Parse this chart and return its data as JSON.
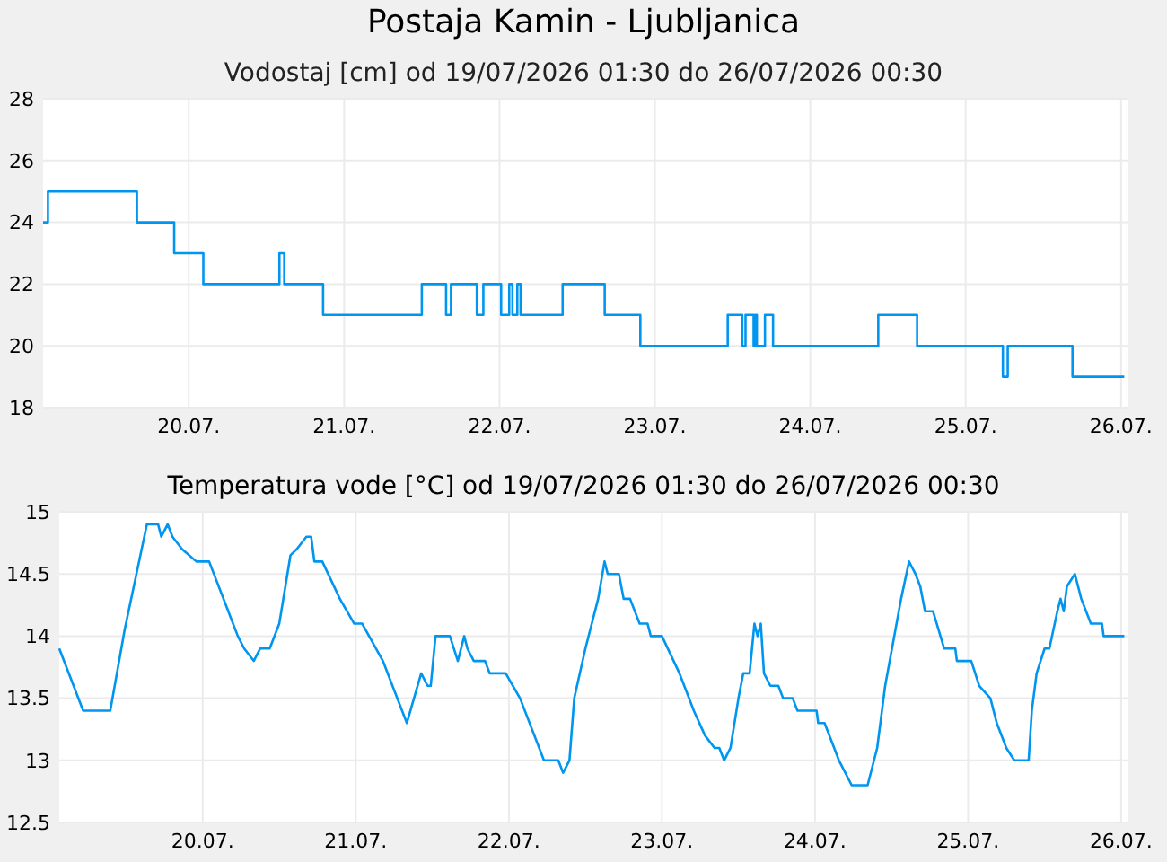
{
  "chart_data": [
    {
      "type": "step",
      "title": "Postaja Kamin - Ljubljanica",
      "subtitle": "Vodostaj [cm] od 19/07/2026 01:30 do 26/07/2026 00:30",
      "xlim": [
        "2026-07-19T01:30",
        "2026-07-26T01:00"
      ],
      "xticks": [
        {
          "value": "2026-07-20",
          "label": "20.07."
        },
        {
          "value": "2026-07-21",
          "label": "21.07."
        },
        {
          "value": "2026-07-22",
          "label": "22.07."
        },
        {
          "value": "2026-07-23",
          "label": "23.07."
        },
        {
          "value": "2026-07-24",
          "label": "24.07."
        },
        {
          "value": "2026-07-25",
          "label": "25.07."
        },
        {
          "value": "2026-07-26",
          "label": "26.07."
        }
      ],
      "ylim": [
        18,
        28
      ],
      "yticks": [
        18,
        20,
        22,
        24,
        26,
        28
      ],
      "grid": true,
      "series": [
        {
          "color": "#0096f0",
          "x": [
            "2026-07-19T01:30",
            "2026-07-19T02:15",
            "2026-07-19T16:00",
            "2026-07-19T21:45",
            "2026-07-20T02:15",
            "2026-07-20T14:00",
            "2026-07-20T14:45",
            "2026-07-20T20:45",
            "2026-07-21T12:00",
            "2026-07-21T15:45",
            "2026-07-21T16:30",
            "2026-07-21T20:30",
            "2026-07-21T21:30",
            "2026-07-22T00:15",
            "2026-07-22T01:30",
            "2026-07-22T02:00",
            "2026-07-22T02:45",
            "2026-07-22T03:15",
            "2026-07-22T09:45",
            "2026-07-22T16:15",
            "2026-07-22T21:45",
            "2026-07-23T11:15",
            "2026-07-23T13:30",
            "2026-07-23T14:00",
            "2026-07-23T15:15",
            "2026-07-23T15:30",
            "2026-07-23T15:45",
            "2026-07-23T17:00",
            "2026-07-23T18:15",
            "2026-07-24T10:30",
            "2026-07-24T16:30",
            "2026-07-25T05:45",
            "2026-07-25T06:30",
            "2026-07-25T16:30",
            "2026-07-26T00:30"
          ],
          "values": [
            24,
            25,
            24,
            23,
            22,
            23,
            22,
            21,
            22,
            21,
            22,
            21,
            22,
            21,
            22,
            21,
            22,
            21,
            22,
            21,
            20,
            21,
            20,
            21,
            20,
            21,
            20,
            21,
            20,
            21,
            20,
            19,
            20,
            19,
            19
          ]
        }
      ]
    },
    {
      "type": "line",
      "title": "Temperatura vode [°C] od 19/07/2026 01:30 do 26/07/2026 00:30",
      "xlim": [
        "2026-07-19T01:30",
        "2026-07-26T01:00"
      ],
      "xticks": [
        {
          "value": "2026-07-20",
          "label": "20.07."
        },
        {
          "value": "2026-07-21",
          "label": "21.07."
        },
        {
          "value": "2026-07-22",
          "label": "22.07."
        },
        {
          "value": "2026-07-23",
          "label": "23.07."
        },
        {
          "value": "2026-07-24",
          "label": "24.07."
        },
        {
          "value": "2026-07-25",
          "label": "25.07."
        },
        {
          "value": "2026-07-26",
          "label": "26.07."
        }
      ],
      "ylim": [
        12.5,
        15
      ],
      "yticks": [
        12.5,
        13,
        13.5,
        14,
        14.5,
        15
      ],
      "grid": true,
      "series": [
        {
          "color": "#0096f0",
          "x": [
            "2026-07-19T01:30",
            "2026-07-19T05:15",
            "2026-07-19T09:30",
            "2026-07-19T11:45",
            "2026-07-19T15:15",
            "2026-07-19T17:00",
            "2026-07-19T17:30",
            "2026-07-19T18:30",
            "2026-07-19T19:15",
            "2026-07-19T20:45",
            "2026-07-19T23:00",
            "2026-07-20T01:00",
            "2026-07-20T05:30",
            "2026-07-20T06:30",
            "2026-07-20T08:00",
            "2026-07-20T09:00",
            "2026-07-20T10:30",
            "2026-07-20T12:00",
            "2026-07-20T13:45",
            "2026-07-20T14:45",
            "2026-07-20T16:15",
            "2026-07-20T17:00",
            "2026-07-20T17:30",
            "2026-07-20T18:45",
            "2026-07-20T21:30",
            "2026-07-20T23:45",
            "2026-07-21T01:00",
            "2026-07-21T04:15",
            "2026-07-21T08:00",
            "2026-07-21T10:15",
            "2026-07-21T11:15",
            "2026-07-21T11:45",
            "2026-07-21T12:30",
            "2026-07-21T14:45",
            "2026-07-21T16:00",
            "2026-07-21T17:00",
            "2026-07-21T17:30",
            "2026-07-21T18:30",
            "2026-07-21T20:15",
            "2026-07-21T21:00",
            "2026-07-21T23:30",
            "2026-07-22T01:45",
            "2026-07-22T05:30",
            "2026-07-22T07:45",
            "2026-07-22T08:30",
            "2026-07-22T09:30",
            "2026-07-22T10:15",
            "2026-07-22T12:00",
            "2026-07-22T14:00",
            "2026-07-22T15:00",
            "2026-07-22T15:30",
            "2026-07-22T17:15",
            "2026-07-22T18:00",
            "2026-07-22T19:00",
            "2026-07-22T20:30",
            "2026-07-22T21:45",
            "2026-07-22T22:15",
            "2026-07-23T00:00",
            "2026-07-23T02:45",
            "2026-07-23T05:00",
            "2026-07-23T06:45",
            "2026-07-23T08:15",
            "2026-07-23T09:00",
            "2026-07-23T09:45",
            "2026-07-23T10:45",
            "2026-07-23T12:00",
            "2026-07-23T12:45",
            "2026-07-23T13:45",
            "2026-07-23T14:30",
            "2026-07-23T15:00",
            "2026-07-23T15:30",
            "2026-07-23T16:00",
            "2026-07-23T17:00",
            "2026-07-23T18:15",
            "2026-07-23T19:00",
            "2026-07-23T20:30",
            "2026-07-23T21:15",
            "2026-07-24T00:15",
            "2026-07-24T00:30",
            "2026-07-24T01:30",
            "2026-07-24T03:45",
            "2026-07-24T05:45",
            "2026-07-24T08:15",
            "2026-07-24T09:45",
            "2026-07-24T11:00",
            "2026-07-24T13:30",
            "2026-07-24T14:45",
            "2026-07-24T15:45",
            "2026-07-24T16:30",
            "2026-07-24T17:15",
            "2026-07-24T18:30",
            "2026-07-24T20:15",
            "2026-07-24T22:00",
            "2026-07-24T22:15",
            "2026-07-25T00:30",
            "2026-07-25T01:45",
            "2026-07-25T03:30",
            "2026-07-25T04:30",
            "2026-07-25T06:00",
            "2026-07-25T07:15",
            "2026-07-25T09:30",
            "2026-07-25T10:00",
            "2026-07-25T10:45",
            "2026-07-25T12:00",
            "2026-07-25T12:45",
            "2026-07-25T14:00",
            "2026-07-25T14:30",
            "2026-07-25T15:00",
            "2026-07-25T15:30",
            "2026-07-25T16:45",
            "2026-07-25T17:45",
            "2026-07-25T19:15",
            "2026-07-25T21:00",
            "2026-07-25T21:15",
            "2026-07-26T00:30"
          ],
          "values": [
            13.9,
            13.4,
            13.4,
            14.05,
            14.9,
            14.9,
            14.8,
            14.9,
            14.8,
            14.7,
            14.6,
            14.6,
            14.0,
            13.9,
            13.8,
            13.9,
            13.9,
            14.1,
            14.65,
            14.7,
            14.8,
            14.8,
            14.6,
            14.6,
            14.3,
            14.1,
            14.1,
            13.8,
            13.3,
            13.7,
            13.6,
            13.6,
            14.0,
            14.0,
            13.8,
            14.0,
            13.9,
            13.8,
            13.8,
            13.7,
            13.7,
            13.5,
            13.0,
            13.0,
            12.9,
            13.0,
            13.5,
            13.9,
            14.3,
            14.6,
            14.5,
            14.5,
            14.3,
            14.3,
            14.1,
            14.1,
            14.0,
            14.0,
            13.7,
            13.4,
            13.2,
            13.1,
            13.1,
            13.0,
            13.1,
            13.5,
            13.7,
            13.7,
            14.1,
            14.0,
            14.1,
            13.7,
            13.6,
            13.6,
            13.5,
            13.5,
            13.4,
            13.4,
            13.3,
            13.3,
            13.0,
            12.8,
            12.8,
            13.1,
            13.6,
            14.3,
            14.6,
            14.5,
            14.4,
            14.2,
            14.2,
            13.9,
            13.9,
            13.8,
            13.8,
            13.6,
            13.5,
            13.3,
            13.1,
            13.0,
            13.0,
            13.4,
            13.7,
            13.9,
            13.9,
            14.2,
            14.3,
            14.2,
            14.4,
            14.5,
            14.3,
            14.1,
            14.1,
            14.0,
            14.0
          ]
        }
      ]
    }
  ]
}
